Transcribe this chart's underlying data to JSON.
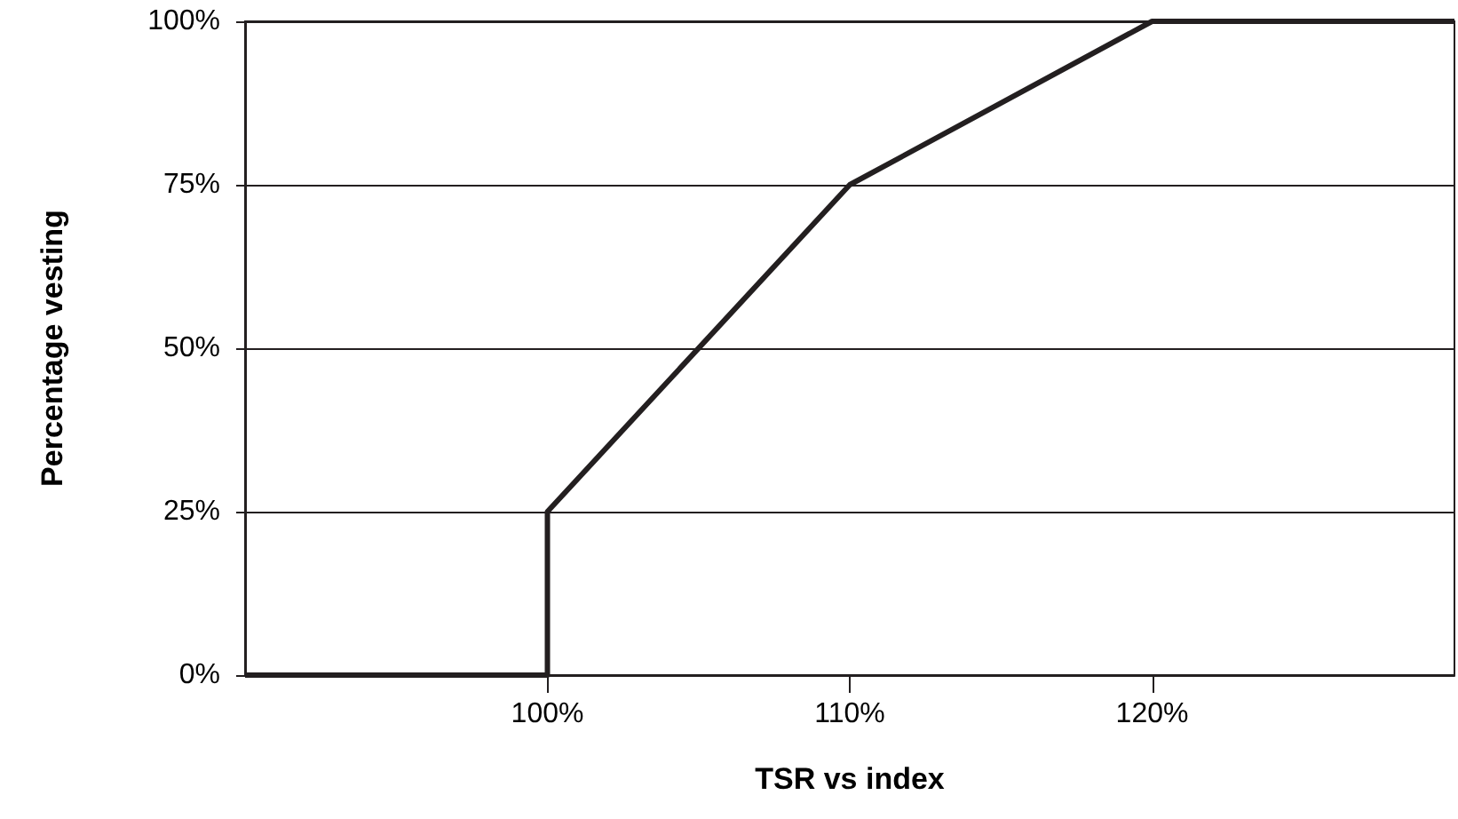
{
  "chart_data": {
    "type": "line",
    "xlabel": "TSR vs index",
    "ylabel": "Percentage vesting",
    "x": [
      90,
      100,
      100,
      110,
      120,
      130
    ],
    "series": [
      {
        "color": "#231f20",
        "values": [
          0,
          0,
          25,
          75,
          100,
          100
        ]
      }
    ],
    "xlim": [
      90,
      130
    ],
    "xticks": [
      {
        "value": 100,
        "label": "100%"
      },
      {
        "value": 110,
        "label": "110%"
      },
      {
        "value": 120,
        "label": "120%"
      }
    ],
    "ylim": [
      0,
      100
    ],
    "yticks": [
      {
        "value": 0,
        "label": "0%"
      },
      {
        "value": 25,
        "label": "25%"
      },
      {
        "value": 50,
        "label": "50%"
      },
      {
        "value": 75,
        "label": "75%"
      },
      {
        "value": 100,
        "label": "100%"
      }
    ],
    "grid": "y",
    "marker": "none",
    "line_style": "solid"
  }
}
